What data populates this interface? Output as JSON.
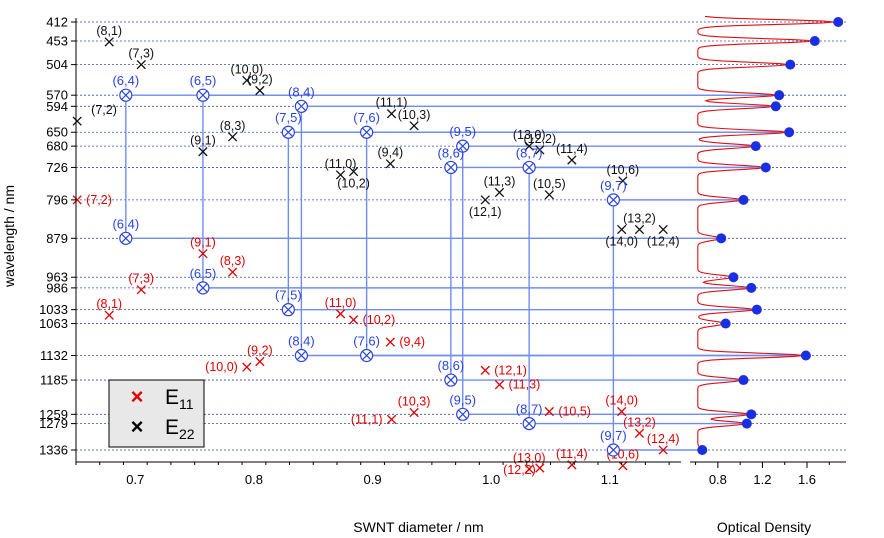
{
  "chart_data": {
    "type": "scatter",
    "xlabel": "SWNT diameter / nm",
    "ylabel": "wavelength / nm",
    "xlim": [
      0.65,
      1.16
    ],
    "ylim": [
      412,
      1380
    ],
    "x_ticks": [
      {
        "v": 0.7,
        "label": "0.7"
      },
      {
        "v": 0.8,
        "label": "0.8"
      },
      {
        "v": 0.9,
        "label": "0.9"
      },
      {
        "v": 1.0,
        "label": "1.0"
      },
      {
        "v": 1.1,
        "label": "1.1"
      }
    ],
    "y_ticks": [
      {
        "v": 412,
        "label": "412"
      },
      {
        "v": 453,
        "label": "453"
      },
      {
        "v": 504,
        "label": "504"
      },
      {
        "v": 570,
        "label": "570"
      },
      {
        "v": 594,
        "label": "594"
      },
      {
        "v": 650,
        "label": "650"
      },
      {
        "v": 680,
        "label": "680"
      },
      {
        "v": 726,
        "label": "726"
      },
      {
        "v": 796,
        "label": "796"
      },
      {
        "v": 879,
        "label": "879"
      },
      {
        "v": 963,
        "label": "963"
      },
      {
        "v": 986,
        "label": "986"
      },
      {
        "v": 1033,
        "label": "1033"
      },
      {
        "v": 1063,
        "label": "1063"
      },
      {
        "v": 1132,
        "label": "1132"
      },
      {
        "v": 1185,
        "label": "1185"
      },
      {
        "v": 1259,
        "label": "1259"
      },
      {
        "v": 1279,
        "label": "1279"
      },
      {
        "v": 1336,
        "label": "1336"
      }
    ],
    "legend": {
      "placement": "bottom-left",
      "entries": [
        {
          "marker": "×",
          "base": "E",
          "sub": "11",
          "color": "#e00000"
        },
        {
          "marker": "×",
          "base": "E",
          "sub": "22",
          "color": "#000000"
        }
      ]
    },
    "od_panel": {
      "xlabel": "Optical Density",
      "xlim": [
        0.55,
        1.95
      ],
      "x_ticks": [
        {
          "v": 0.8,
          "label": "0.8"
        },
        {
          "v": 1.2,
          "label": "1.2"
        },
        {
          "v": 1.6,
          "label": "1.6"
        }
      ],
      "peaks": [
        {
          "wl": 412,
          "od": 1.88
        },
        {
          "wl": 453,
          "od": 1.67
        },
        {
          "wl": 504,
          "od": 1.45
        },
        {
          "wl": 570,
          "od": 1.35
        },
        {
          "wl": 594,
          "od": 1.32
        },
        {
          "wl": 650,
          "od": 1.44
        },
        {
          "wl": 680,
          "od": 1.14
        },
        {
          "wl": 726,
          "od": 1.23
        },
        {
          "wl": 796,
          "od": 1.03
        },
        {
          "wl": 879,
          "od": 0.83
        },
        {
          "wl": 963,
          "od": 0.94
        },
        {
          "wl": 986,
          "od": 1.1
        },
        {
          "wl": 1033,
          "od": 1.15
        },
        {
          "wl": 1063,
          "od": 0.87
        },
        {
          "wl": 1132,
          "od": 1.59
        },
        {
          "wl": 1185,
          "od": 1.03
        },
        {
          "wl": 1259,
          "od": 1.1
        },
        {
          "wl": 1279,
          "od": 1.06
        },
        {
          "wl": 1336,
          "od": 0.66
        }
      ]
    },
    "e22_points": [
      {
        "label": "(8,1)",
        "d": 0.678,
        "wl": 455
      },
      {
        "label": "(7,3)",
        "d": 0.705,
        "wl": 504
      },
      {
        "label": "(10,0)",
        "d": 0.794,
        "wl": 538
      },
      {
        "label": "(9,2)",
        "d": 0.805,
        "wl": 560
      },
      {
        "label": "(7,2)",
        "d": 0.651,
        "wl": 626
      },
      {
        "label": "(9,1)",
        "d": 0.757,
        "wl": 692
      },
      {
        "label": "(8,3)",
        "d": 0.782,
        "wl": 660
      },
      {
        "label": "(11,1)",
        "d": 0.916,
        "wl": 610
      },
      {
        "label": "(10,3)",
        "d": 0.935,
        "wl": 636
      },
      {
        "label": "(11,0)",
        "d": 0.873,
        "wl": 742
      },
      {
        "label": "(10,2)",
        "d": 0.884,
        "wl": 735
      },
      {
        "label": "(9,4)",
        "d": 0.915,
        "wl": 718
      },
      {
        "label": "(13,0)",
        "d": 1.032,
        "wl": 680
      },
      {
        "label": "(12,2)",
        "d": 1.041,
        "wl": 688
      },
      {
        "label": "(11,4)",
        "d": 1.068,
        "wl": 710
      },
      {
        "label": "(11,3)",
        "d": 1.007,
        "wl": 780
      },
      {
        "label": "(12,1)",
        "d": 0.995,
        "wl": 796
      },
      {
        "label": "(10,5)",
        "d": 1.049,
        "wl": 785
      },
      {
        "label": "(10,6)",
        "d": 1.111,
        "wl": 755
      },
      {
        "label": "(13,2)",
        "d": 1.125,
        "wl": 860
      },
      {
        "label": "(14,0)",
        "d": 1.11,
        "wl": 860
      },
      {
        "label": "(12,4)",
        "d": 1.145,
        "wl": 860
      }
    ],
    "e11_points": [
      {
        "label": "(7,2)",
        "d": 0.651,
        "wl": 796
      },
      {
        "label": "(9,1)",
        "d": 0.757,
        "wl": 912
      },
      {
        "label": "(8,3)",
        "d": 0.782,
        "wl": 952
      },
      {
        "label": "(7,3)",
        "d": 0.705,
        "wl": 990
      },
      {
        "label": "(8,1)",
        "d": 0.678,
        "wl": 1045
      },
      {
        "label": "(11,0)",
        "d": 0.873,
        "wl": 1042
      },
      {
        "label": "(10,2)",
        "d": 0.884,
        "wl": 1055
      },
      {
        "label": "(9,4)",
        "d": 0.915,
        "wl": 1103
      },
      {
        "label": "(9,2)",
        "d": 0.805,
        "wl": 1145
      },
      {
        "label": "(10,0)",
        "d": 0.794,
        "wl": 1157
      },
      {
        "label": "(12,1)",
        "d": 0.995,
        "wl": 1164
      },
      {
        "label": "(11,3)",
        "d": 1.007,
        "wl": 1195
      },
      {
        "label": "(10,3)",
        "d": 0.935,
        "wl": 1255
      },
      {
        "label": "(11,1)",
        "d": 0.916,
        "wl": 1270
      },
      {
        "label": "(10,5)",
        "d": 1.049,
        "wl": 1253
      },
      {
        "label": "(14,0)",
        "d": 1.11,
        "wl": 1253
      },
      {
        "label": "(13,2)",
        "d": 1.125,
        "wl": 1300
      },
      {
        "label": "(12,4)",
        "d": 1.145,
        "wl": 1336
      },
      {
        "label": "(12,2)",
        "d": 1.041,
        "wl": 1375
      },
      {
        "label": "(13,0)",
        "d": 1.032,
        "wl": 1377
      },
      {
        "label": "(11,4)",
        "d": 1.068,
        "wl": 1368
      },
      {
        "label": "(10,6)",
        "d": 1.111,
        "wl": 1370
      }
    ],
    "assignments": [
      {
        "label": "(6,4)",
        "d": 0.692,
        "e22": 570,
        "e11": 879
      },
      {
        "label": "(6,5)",
        "d": 0.757,
        "e22": 570,
        "e11": 986
      },
      {
        "label": "(8,4)",
        "d": 0.84,
        "e22": 594,
        "e11": 1132
      },
      {
        "label": "(7,5)",
        "d": 0.829,
        "e22": 650,
        "e11": 1033
      },
      {
        "label": "(7,6)",
        "d": 0.895,
        "e22": 650,
        "e11": 1132
      },
      {
        "label": "(9,5)",
        "d": 0.976,
        "e22": 680,
        "e11": 1259
      },
      {
        "label": "(8,6)",
        "d": 0.966,
        "e22": 726,
        "e11": 1185
      },
      {
        "label": "(8,7)",
        "d": 1.032,
        "e22": 726,
        "e11": 1279
      },
      {
        "label": "(9,7)",
        "d": 1.103,
        "e22": 796,
        "e11": 1336
      }
    ]
  }
}
